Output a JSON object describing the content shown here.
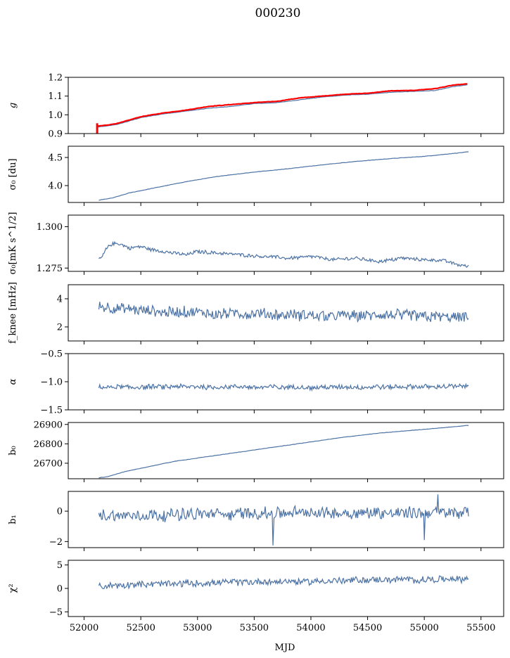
{
  "figure": {
    "title": "000230",
    "xlabel": "MJD"
  },
  "colors": {
    "series": "#4c72a4",
    "overlay": "#ff0000",
    "axes": "#000000"
  },
  "chart_data": [
    {
      "type": "line",
      "name": "g",
      "ylabel": "g",
      "xlim": [
        51860,
        55700
      ],
      "ylim": [
        0.9,
        1.2
      ],
      "yticks": [
        0.9,
        1.0,
        1.1,
        1.2
      ],
      "ytick_labels": [
        "0.9",
        "1.0",
        "1.1",
        "1.2"
      ],
      "xticks": [
        52000,
        52500,
        53000,
        53500,
        54000,
        54500,
        55000,
        55500
      ],
      "series": [
        {
          "x": [
            52120,
            52200,
            52300,
            52500,
            52700,
            52900,
            53100,
            53300,
            53500,
            53700,
            53900,
            54100,
            54300,
            54500,
            54700,
            54900,
            55100,
            55250,
            55380
          ],
          "y": [
            0.935,
            0.94,
            0.95,
            0.985,
            1.005,
            1.02,
            1.035,
            1.045,
            1.06,
            1.065,
            1.08,
            1.095,
            1.105,
            1.11,
            1.12,
            1.125,
            1.13,
            1.15,
            1.16
          ]
        },
        {
          "x": [
            52120,
            52200,
            52300,
            52500,
            52700,
            52900,
            53100,
            53300,
            53500,
            53700,
            53900,
            54100,
            54300,
            54500,
            54700,
            54900,
            55100,
            55250,
            55380
          ],
          "y": [
            0.94,
            0.945,
            0.955,
            0.99,
            1.01,
            1.025,
            1.045,
            1.055,
            1.065,
            1.072,
            1.09,
            1.1,
            1.11,
            1.115,
            1.128,
            1.13,
            1.14,
            1.158,
            1.165
          ],
          "spike": {
            "x": 52115,
            "y": [
              0.89,
              0.955
            ]
          }
        }
      ]
    },
    {
      "type": "line",
      "name": "sigma0-du",
      "ylabel": "σ₀ [du]",
      "xlim": [
        51860,
        55700
      ],
      "ylim": [
        3.7,
        4.7
      ],
      "yticks": [
        4.0,
        4.5
      ],
      "ytick_labels": [
        "4.0",
        "4.5"
      ],
      "series": [
        {
          "x": [
            52130,
            52250,
            52400,
            52600,
            52900,
            53200,
            53500,
            53800,
            54100,
            54400,
            54700,
            55000,
            55200,
            55390
          ],
          "y": [
            3.74,
            3.78,
            3.87,
            3.95,
            4.07,
            4.17,
            4.24,
            4.3,
            4.37,
            4.43,
            4.48,
            4.52,
            4.56,
            4.6
          ]
        }
      ]
    },
    {
      "type": "line",
      "name": "sigma0-mks",
      "ylabel": "σ₀[mK s^1/2]",
      "xlim": [
        51860,
        55700
      ],
      "ylim": [
        1.273,
        1.307
      ],
      "yticks": [
        1.275,
        1.3
      ],
      "ytick_labels": [
        "1.275",
        "1.300"
      ],
      "series": [
        {
          "x": [
            52130,
            52160,
            52190,
            52230,
            52300,
            52400,
            52500,
            52600,
            52700,
            52800,
            52900,
            53000,
            53200,
            53400,
            53600,
            53800,
            54000,
            54200,
            54400,
            54600,
            54800,
            55000,
            55100,
            55200,
            55300,
            55390
          ],
          "y": [
            1.28,
            1.282,
            1.286,
            1.289,
            1.29,
            1.287,
            1.288,
            1.286,
            1.285,
            1.284,
            1.283,
            1.285,
            1.284,
            1.283,
            1.282,
            1.281,
            1.282,
            1.28,
            1.281,
            1.279,
            1.281,
            1.28,
            1.28,
            1.279,
            1.277,
            1.276
          ],
          "noise": 0.0012
        }
      ]
    },
    {
      "type": "line",
      "name": "fknee",
      "ylabel": "f_knee [mHz]",
      "xlim": [
        51860,
        55700
      ],
      "ylim": [
        1.0,
        5.0
      ],
      "yticks": [
        2,
        4
      ],
      "ytick_labels": [
        "2",
        "4"
      ],
      "series": [
        {
          "x": [
            52130,
            52300,
            52600,
            53000,
            53500,
            54000,
            54500,
            55000,
            55390
          ],
          "y": [
            3.5,
            3.3,
            3.1,
            3.0,
            2.9,
            2.8,
            2.8,
            2.8,
            2.6
          ],
          "noise": 0.45
        }
      ]
    },
    {
      "type": "line",
      "name": "alpha",
      "ylabel": "α",
      "xlim": [
        51860,
        55700
      ],
      "ylim": [
        -1.5,
        -0.5
      ],
      "yticks": [
        -1.5,
        -1.0,
        -0.5
      ],
      "ytick_labels": [
        "−1.5",
        "−1.0",
        "−0.5"
      ],
      "series": [
        {
          "x": [
            52130,
            53000,
            54000,
            55000,
            55390
          ],
          "y": [
            -1.1,
            -1.09,
            -1.1,
            -1.09,
            -1.08
          ],
          "noise": 0.05
        }
      ]
    },
    {
      "type": "line",
      "name": "b0",
      "ylabel": "b₀",
      "xlim": [
        51860,
        55700
      ],
      "ylim": [
        26620,
        26910
      ],
      "yticks": [
        26700,
        26800,
        26900
      ],
      "ytick_labels": [
        "26700",
        "26800",
        "26900"
      ],
      "series": [
        {
          "x": [
            52130,
            52200,
            52350,
            52550,
            52800,
            53100,
            53400,
            53700,
            54000,
            54300,
            54600,
            54900,
            55200,
            55390
          ],
          "y": [
            26625,
            26630,
            26655,
            26680,
            26710,
            26735,
            26760,
            26785,
            26810,
            26835,
            26855,
            26870,
            26885,
            26895
          ]
        }
      ]
    },
    {
      "type": "line",
      "name": "b1",
      "ylabel": "b₁",
      "xlim": [
        51860,
        55700
      ],
      "ylim": [
        -2.4,
        1.3
      ],
      "yticks": [
        -2,
        0
      ],
      "ytick_labels": [
        "−2",
        "0"
      ],
      "series": [
        {
          "x": [
            52130,
            53000,
            54000,
            55000,
            55390
          ],
          "y": [
            -0.3,
            -0.2,
            -0.1,
            -0.1,
            -0.1
          ],
          "noise": 0.45,
          "outliers": [
            {
              "x": 53665,
              "y": -2.25
            },
            {
              "x": 55000,
              "y": -1.9
            },
            {
              "x": 55120,
              "y": 1.1
            }
          ]
        }
      ]
    },
    {
      "type": "line",
      "name": "chi2",
      "ylabel": "χ²",
      "xlim": [
        51860,
        55700
      ],
      "ylim": [
        -6,
        6
      ],
      "yticks": [
        -5,
        0,
        5
      ],
      "ytick_labels": [
        "−5",
        "0",
        "5"
      ],
      "xtick_labels": [
        "52000",
        "52500",
        "53000",
        "53500",
        "54000",
        "54500",
        "55000",
        "55500"
      ],
      "series": [
        {
          "x": [
            52130,
            52500,
            53000,
            53500,
            54000,
            54500,
            55000,
            55390
          ],
          "y": [
            0.4,
            0.9,
            1.1,
            1.4,
            1.5,
            1.8,
            1.9,
            2.0
          ],
          "noise": 0.8
        }
      ]
    }
  ]
}
